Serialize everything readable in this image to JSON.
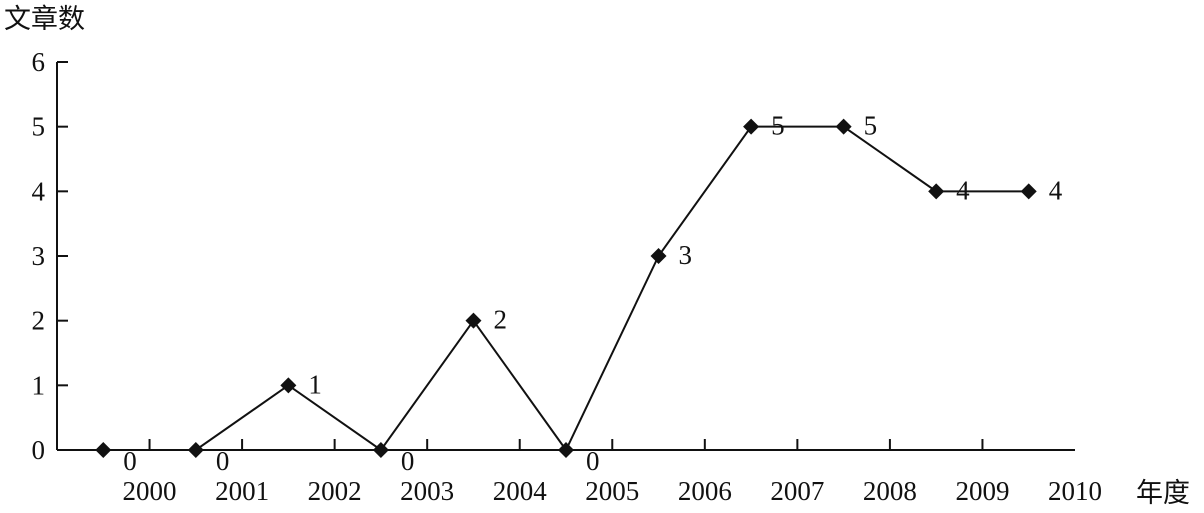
{
  "chart_data": {
    "type": "line",
    "title": "",
    "ylabel": "文章数",
    "xlabel": "年度",
    "categories": [
      "2000",
      "2001",
      "2002",
      "2003",
      "2004",
      "2005",
      "2006",
      "2007",
      "2008",
      "2009",
      "2010"
    ],
    "values": [
      0,
      0,
      1,
      0,
      2,
      0,
      3,
      5,
      5,
      4,
      4
    ],
    "data_labels": [
      "0",
      "0",
      "1",
      "0",
      "2",
      "0",
      "3",
      "5",
      "5",
      "4",
      "4"
    ],
    "ylim": [
      0,
      6
    ],
    "yticks": [
      "0",
      "1",
      "2",
      "3",
      "4",
      "5",
      "6"
    ],
    "marker": "diamond",
    "grid": false,
    "line_color": "#111111"
  }
}
